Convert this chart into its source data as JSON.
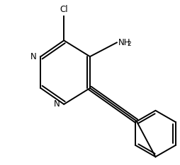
{
  "background_color": "#ffffff",
  "line_color": "#000000",
  "line_width": 1.4,
  "figsize": [
    2.54,
    2.34
  ],
  "dpi": 100,
  "text_fontsize": 8.5,
  "subscript_fontsize": 6.5,
  "xlim": [
    0,
    254
  ],
  "ylim": [
    0,
    234
  ]
}
